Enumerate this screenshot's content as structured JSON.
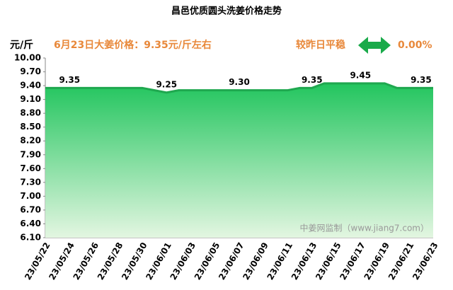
{
  "chart_data": {
    "type": "area",
    "title": "昌邑优质圆头洗姜价格走势",
    "y_label": "元/斤",
    "annotation": "6月23日大姜价格：9.35元/斤左右",
    "change_text": "较昨日平稳",
    "change_value": "0.00%",
    "watermark": "中姜网监制（www.jiang7.com）",
    "categories": [
      "23/05/22",
      null,
      "23/05/24",
      null,
      "23/05/26",
      null,
      "23/05/28",
      null,
      "23/05/30",
      null,
      "23/06/01",
      null,
      "23/06/03",
      null,
      "23/06/05",
      null,
      "23/06/07",
      null,
      "23/06/09",
      null,
      "23/06/11",
      null,
      "23/06/13",
      null,
      "23/06/15",
      null,
      "23/06/17",
      null,
      "23/06/19",
      null,
      "23/06/21",
      null,
      "23/06/23"
    ],
    "values": [
      9.35,
      9.35,
      9.35,
      9.35,
      9.35,
      9.35,
      9.35,
      9.35,
      9.35,
      9.3,
      9.25,
      9.3,
      9.3,
      9.3,
      9.3,
      9.3,
      9.3,
      9.3,
      9.3,
      9.3,
      9.3,
      9.35,
      9.35,
      9.45,
      9.45,
      9.45,
      9.45,
      9.45,
      9.45,
      9.35,
      9.35,
      9.35,
      9.35
    ],
    "value_labels": [
      null,
      null,
      "9.35",
      null,
      null,
      null,
      null,
      null,
      null,
      null,
      "9.25",
      null,
      null,
      null,
      null,
      null,
      "9.30",
      null,
      null,
      null,
      null,
      null,
      "9.35",
      null,
      null,
      null,
      "9.45",
      null,
      null,
      null,
      null,
      "9.35",
      null
    ],
    "color": "#1fa84f",
    "ylim": [
      6.1,
      10.0
    ],
    "yticks": [
      {
        "value": 6.1,
        "label": "6.10"
      },
      {
        "value": 6.4,
        "label": "6.40"
      },
      {
        "value": 6.7,
        "label": "6.70"
      },
      {
        "value": 7.0,
        "label": "7.00"
      },
      {
        "value": 7.3,
        "label": "7.30"
      },
      {
        "value": 7.6,
        "label": "7.60"
      },
      {
        "value": 7.9,
        "label": "7.90"
      },
      {
        "value": 8.2,
        "label": "8.20"
      },
      {
        "value": 8.5,
        "label": "8.50"
      },
      {
        "value": 8.8,
        "label": "8.80"
      },
      {
        "value": 9.1,
        "label": "9.10"
      },
      {
        "value": 9.4,
        "label": "9.40"
      },
      {
        "value": 9.7,
        "label": "9.70"
      },
      {
        "value": 10.0,
        "label": "10.00"
      }
    ]
  }
}
